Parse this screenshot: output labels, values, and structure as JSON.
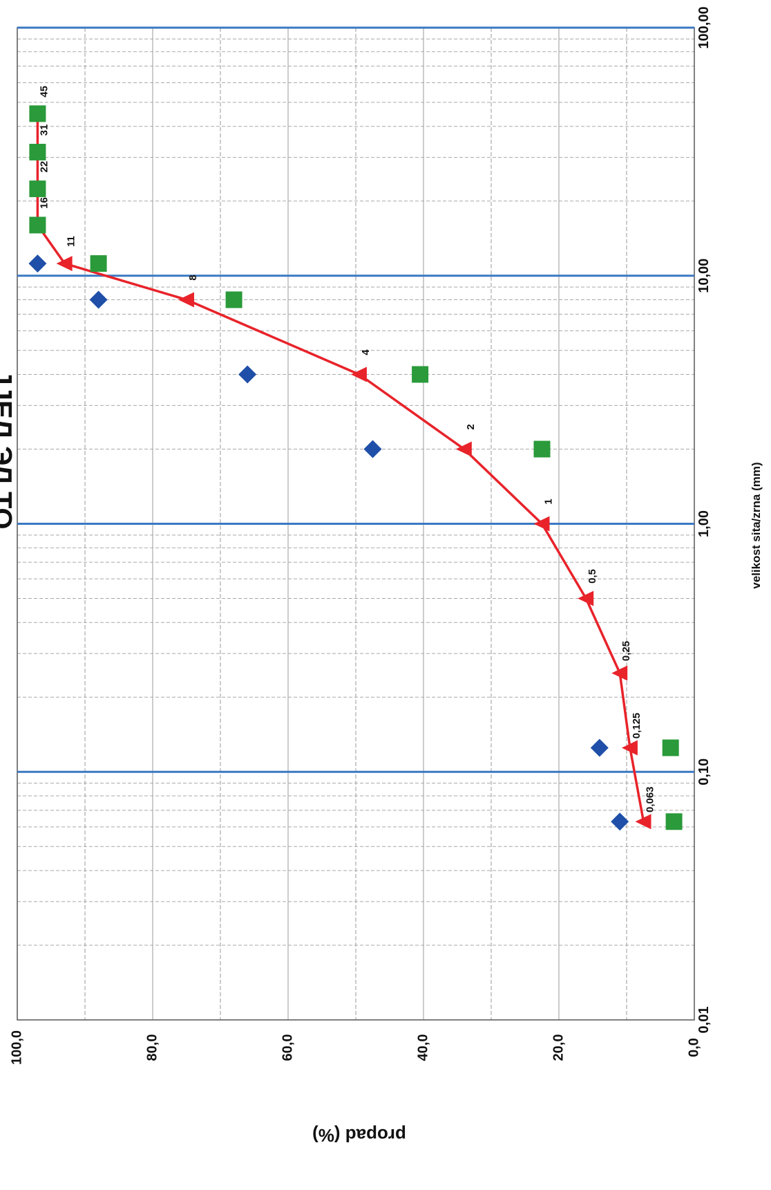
{
  "chart_data": {
    "type": "line",
    "title": "",
    "title_partial": "ЈЈЕЛ ЭЛ ТО",
    "xlabel": "velikost sita/zrna (mm)",
    "ylabel": "propad (%)",
    "x_scale": "log",
    "xlim": [
      0.01,
      100
    ],
    "ylim": [
      0,
      100
    ],
    "x_tick_labels": [
      "0,01",
      "0,10",
      "1,00",
      "10,00",
      "100,00"
    ],
    "y_tick_labels": [
      "0,0",
      "20,0",
      "40,0",
      "60,0",
      "80,0",
      "100,0"
    ],
    "orientation": "rotated-90-clockwise",
    "grid": true,
    "accent_colors": {
      "line": "#e8232a",
      "lower_limit": "#1f4fa8",
      "upper_limit": "#2a9a3a",
      "reference_lines": "#3a78c2"
    },
    "reference_x_lines": [
      0.1,
      1,
      10,
      100
    ],
    "series": [
      {
        "marker": "triangle",
        "color": "#e8232a",
        "points": [
          {
            "x": 0.063,
            "y": 7.5,
            "label": "0,063"
          },
          {
            "x": 0.125,
            "y": 9.5,
            "label": "0,125"
          },
          {
            "x": 0.25,
            "y": 11.0,
            "label": "0,25"
          },
          {
            "x": 0.5,
            "y": 16.0,
            "label": "0,5"
          },
          {
            "x": 1,
            "y": 22.5,
            "label": "1"
          },
          {
            "x": 2,
            "y": 34.0,
            "label": "2"
          },
          {
            "x": 4,
            "y": 49.5,
            "label": "4"
          },
          {
            "x": 8,
            "y": 75.0,
            "label": "8"
          },
          {
            "x": 11.2,
            "y": 93.0,
            "label": "11"
          },
          {
            "x": 16,
            "y": 97.0,
            "label": "16"
          },
          {
            "x": 22.4,
            "y": 97.0,
            "label": "22"
          },
          {
            "x": 31.5,
            "y": 97.0,
            "label": "31"
          },
          {
            "x": 45,
            "y": 97.0,
            "label": "45"
          }
        ]
      },
      {
        "marker": "diamond",
        "color": "#1f4fa8",
        "points": [
          {
            "x": 0.063,
            "y": 11.0
          },
          {
            "x": 0.125,
            "y": 14.0
          },
          {
            "x": 2,
            "y": 47.5
          },
          {
            "x": 4,
            "y": 66.0
          },
          {
            "x": 8,
            "y": 88.0
          },
          {
            "x": 11.2,
            "y": 97.0
          }
        ]
      },
      {
        "marker": "square",
        "color": "#2a9a3a",
        "points": [
          {
            "x": 0.063,
            "y": 3.0
          },
          {
            "x": 0.125,
            "y": 3.5
          },
          {
            "x": 2,
            "y": 22.5
          },
          {
            "x": 4,
            "y": 40.5
          },
          {
            "x": 8,
            "y": 68.0
          },
          {
            "x": 11.2,
            "y": 88.0
          },
          {
            "x": 16,
            "y": 97.0
          },
          {
            "x": 22.4,
            "y": 97.0
          },
          {
            "x": 31.5,
            "y": 97.0
          },
          {
            "x": 45,
            "y": 97.0
          }
        ]
      }
    ]
  }
}
